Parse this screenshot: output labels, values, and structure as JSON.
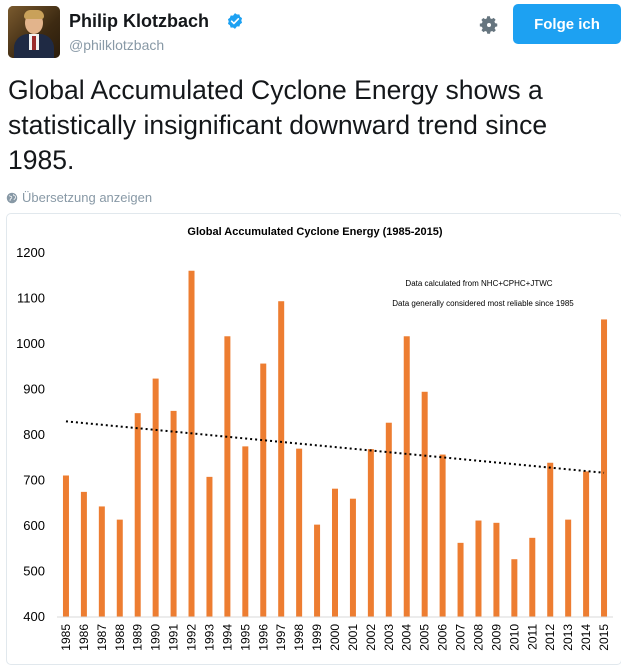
{
  "profile": {
    "name": "Philip Klotzbach",
    "handle": "@philklotzbach",
    "follow_label": "Folge ich"
  },
  "tweet": {
    "text": "Global Accumulated Cyclone Energy shows a statistically insignificant downward trend since 1985.",
    "translate_label": "Übersetzung anzeigen"
  },
  "colors": {
    "accent": "#1da1f2",
    "bar": "#ed7d31",
    "verified": "#1da1f2"
  },
  "chart_data": {
    "type": "bar",
    "title": "Global Accumulated Cyclone Energy (1985-2015)",
    "annotations": [
      "Data calculated from NHC+CPHC+JTWC",
      "Data generally considered most reliable since 1985"
    ],
    "categories": [
      "1985",
      "1986",
      "1987",
      "1988",
      "1989",
      "1990",
      "1991",
      "1992",
      "1993",
      "1994",
      "1995",
      "1996",
      "1997",
      "1998",
      "1999",
      "2000",
      "2001",
      "2002",
      "2003",
      "2004",
      "2005",
      "2006",
      "2007",
      "2008",
      "2009",
      "2010",
      "2011",
      "2012",
      "2013",
      "2014",
      "2015"
    ],
    "values": [
      711,
      675,
      643,
      614,
      848,
      924,
      853,
      1161,
      708,
      1017,
      775,
      957,
      1094,
      770,
      603,
      682,
      660,
      769,
      827,
      1017,
      895,
      757,
      563,
      612,
      607,
      527,
      574,
      739,
      614,
      720,
      1054
    ],
    "yticks": [
      "1200",
      "1100",
      "1000",
      "900",
      "800",
      "700",
      "600",
      "500",
      "400"
    ],
    "ylim": [
      400,
      1200
    ],
    "trendline": {
      "start": 830,
      "end": 717,
      "style": "dotted"
    },
    "xlabel": "",
    "ylabel": "",
    "grid": false
  }
}
